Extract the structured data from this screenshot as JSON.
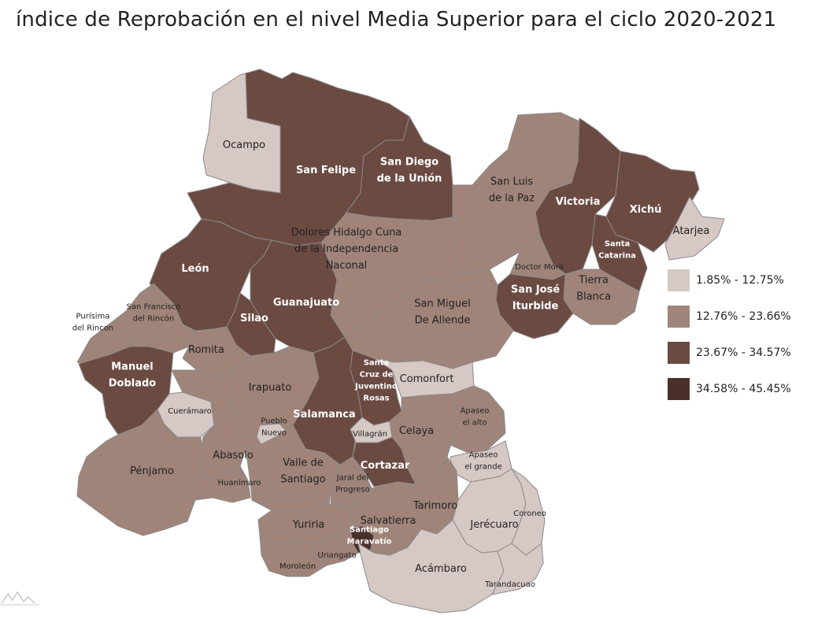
{
  "title": "índice de Reprobación en el nivel Media Superior para el ciclo 2020-2021",
  "colors": {
    "class1": "#d6c8c5",
    "class2": "#a08479",
    "class3": "#6b4a42",
    "class4": "#4b2f2a",
    "border": "#8a8a8a"
  },
  "legend": {
    "items": [
      {
        "label": "1.85% - 12.75%",
        "class": 1
      },
      {
        "label": "12.76% - 23.66%",
        "class": 2
      },
      {
        "label": "23.67% - 34.57%",
        "class": 3
      },
      {
        "label": "34.58% - 45.45%",
        "class": 4
      }
    ]
  },
  "municipalities": [
    {
      "id": "ocampo",
      "name": "Ocampo",
      "class": 1
    },
    {
      "id": "san-felipe",
      "name": "San Felipe",
      "class": 3
    },
    {
      "id": "san-diego",
      "name": "San Diego de la Unión",
      "class": 3
    },
    {
      "id": "san-luis-paz",
      "name": "San Luis de la Paz",
      "class": 2
    },
    {
      "id": "victoria",
      "name": "Victoria",
      "class": 3
    },
    {
      "id": "xichu",
      "name": "Xichú",
      "class": 3
    },
    {
      "id": "atarjea",
      "name": "Atarjea",
      "class": 1
    },
    {
      "id": "santa-catarina",
      "name": "Santa Catarina",
      "class": 3
    },
    {
      "id": "doctor-mora",
      "name": "Doctor Mora",
      "class": 2
    },
    {
      "id": "tierra-blanca",
      "name": "Tierra Blanca",
      "class": 2
    },
    {
      "id": "san-jose-iturbide",
      "name": "San José Iturbide",
      "class": 3
    },
    {
      "id": "dolores-hidalgo",
      "name": "Dolores Hidalgo Cuna de la Independencia Naconal",
      "class": 2
    },
    {
      "id": "san-miguel",
      "name": "San Miguel De Allende",
      "class": 2
    },
    {
      "id": "leon",
      "name": "León",
      "class": 3
    },
    {
      "id": "guanajuato",
      "name": "Guanajuato",
      "class": 3
    },
    {
      "id": "silao",
      "name": "Silao",
      "class": 3
    },
    {
      "id": "purisima",
      "name": "Purísima del Rincon",
      "class": 2
    },
    {
      "id": "san-francisco",
      "name": "San Francisco del Rincón",
      "class": 2
    },
    {
      "id": "romita",
      "name": "Romita",
      "class": 2
    },
    {
      "id": "manuel-doblado",
      "name": "Manuel Doblado",
      "class": 3
    },
    {
      "id": "cueramaro",
      "name": "Cuerámaro",
      "class": 1
    },
    {
      "id": "irapuato",
      "name": "Irapuato",
      "class": 2
    },
    {
      "id": "salamanca",
      "name": "Salamanca",
      "class": 3
    },
    {
      "id": "santa-cruz",
      "name": "Santa Cruz de Juventino Rosas",
      "class": 3
    },
    {
      "id": "comonfort",
      "name": "Comonfort",
      "class": 1
    },
    {
      "id": "villagran",
      "name": "Villagrán",
      "class": 1
    },
    {
      "id": "celaya",
      "name": "Celaya",
      "class": 2
    },
    {
      "id": "apaseo-alto",
      "name": "Apaseo el alto",
      "class": 2
    },
    {
      "id": "apaseo-grande",
      "name": "Apaseo el grande",
      "class": 1
    },
    {
      "id": "pueblo-nuevo",
      "name": "Pueblo Nuevo",
      "class": 1
    },
    {
      "id": "abasolo",
      "name": "Abasolo",
      "class": 2
    },
    {
      "id": "penjamo",
      "name": "Pénjamo",
      "class": 2
    },
    {
      "id": "huanimaro",
      "name": "Huanímaro",
      "class": 2
    },
    {
      "id": "valle-santiago",
      "name": "Valle de Santiago",
      "class": 2
    },
    {
      "id": "jaral",
      "name": "Jaral del Progreso",
      "class": 2
    },
    {
      "id": "cortazar",
      "name": "Cortazar",
      "class": 3
    },
    {
      "id": "tarimoro",
      "name": "Tarimoro",
      "class": 2
    },
    {
      "id": "salvatierra",
      "name": "Salvatierra",
      "class": 2
    },
    {
      "id": "santiago-maravatio",
      "name": "Santiago Maravatío",
      "class": 4
    },
    {
      "id": "yuriria",
      "name": "Yuriria",
      "class": 2
    },
    {
      "id": "uriangato",
      "name": "Uriangato",
      "class": 2
    },
    {
      "id": "moroleon",
      "name": "Moroleón",
      "class": 2
    },
    {
      "id": "jerecuaro",
      "name": "Jerécuaro",
      "class": 1
    },
    {
      "id": "coroneo",
      "name": "Coroneo",
      "class": 1
    },
    {
      "id": "acambaro",
      "name": "Acámbaro",
      "class": 1
    },
    {
      "id": "tarandacuao",
      "name": "Tarandacuao",
      "class": 1
    }
  ]
}
